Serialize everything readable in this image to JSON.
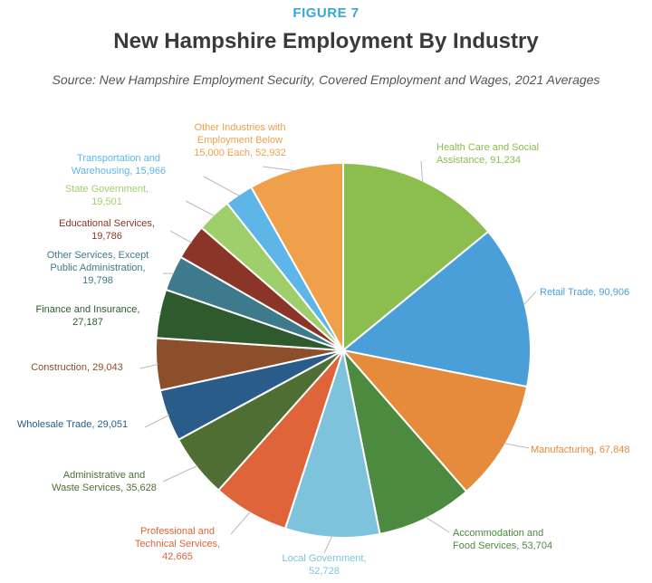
{
  "figure_label": "FIGURE 7",
  "chart_data": {
    "type": "pie",
    "title": "New Hampshire Employment By Industry",
    "subtitle": "Source: New Hampshire Employment Security, Covered Employment and Wages, 2021 Averages",
    "start_angle_deg": 0,
    "direction": "clockwise",
    "slices": [
      {
        "category": "Health Care and Social Assistance",
        "value": 91234,
        "label_lines": [
          "Health Care and Social",
          "Assistance, 91,234"
        ],
        "color": "#8bbd4f"
      },
      {
        "category": "Retail Trade",
        "value": 90906,
        "label_lines": [
          "Retail Trade, 90,906"
        ],
        "color": "#4a9fd8"
      },
      {
        "category": "Manufacturing",
        "value": 67848,
        "label_lines": [
          "Manufacturing, 67,848"
        ],
        "color": "#e68a3c"
      },
      {
        "category": "Accommodation and Food Services",
        "value": 53704,
        "label_lines": [
          "Accommodation and",
          "Food Services, 53,704"
        ],
        "color": "#4c8a3f"
      },
      {
        "category": "Local Government",
        "value": 52728,
        "label_lines": [
          "Local Government,",
          "52,728"
        ],
        "color": "#7ec3dc"
      },
      {
        "category": "Professional and Technical Services",
        "value": 42665,
        "label_lines": [
          "Professional and",
          "Technical Services,",
          "42,665"
        ],
        "color": "#e0643a"
      },
      {
        "category": "Administrative and Waste Services",
        "value": 35628,
        "label_lines": [
          "Administrative and",
          "Waste Services, 35,628"
        ],
        "color": "#4e6e33"
      },
      {
        "category": "Wholesale Trade",
        "value": 29051,
        "label_lines": [
          "Wholesale Trade, 29,051"
        ],
        "color": "#2a5c8a"
      },
      {
        "category": "Construction",
        "value": 29043,
        "label_lines": [
          "Construction, 29,043"
        ],
        "color": "#8c4e2b"
      },
      {
        "category": "Finance and Insurance",
        "value": 27187,
        "label_lines": [
          "Finance and Insurance,",
          "27,187"
        ],
        "color": "#2e5a2e"
      },
      {
        "category": "Other Services, Except Public Administration",
        "value": 19798,
        "label_lines": [
          "Other Services, Except",
          "Public Administration,",
          "19,798"
        ],
        "color": "#3d7a8c"
      },
      {
        "category": "Educational Services",
        "value": 19786,
        "label_lines": [
          "Educational Services,",
          "19,786"
        ],
        "color": "#8b3528"
      },
      {
        "category": "State Government",
        "value": 19501,
        "label_lines": [
          "State Government,",
          "19,501"
        ],
        "color": "#9fcf6b"
      },
      {
        "category": "Transportation and Warehousing",
        "value": 15966,
        "label_lines": [
          "Transportation and",
          "Warehousing, 15,966"
        ],
        "color": "#5eb5e8"
      },
      {
        "category": "Other Industries with Employment Below 15,000 Each",
        "value": 52932,
        "label_lines": [
          "Other Industries with",
          "Employment Below",
          "15,000 Each, 52,932"
        ],
        "color": "#f0a04b"
      }
    ]
  }
}
